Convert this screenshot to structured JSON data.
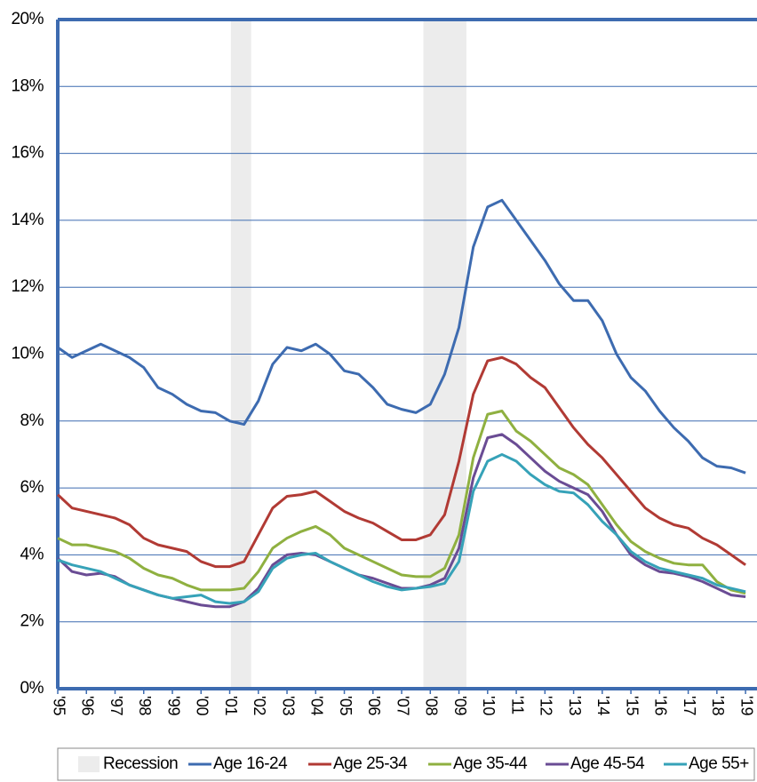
{
  "chart_data": {
    "type": "line",
    "x": [
      1995,
      1995.5,
      1996,
      1996.5,
      1997,
      1997.5,
      1998,
      1998.5,
      1999,
      1999.5,
      2000,
      2000.5,
      2001,
      2001.5,
      2002,
      2002.5,
      2003,
      2003.5,
      2004,
      2004.5,
      2005,
      2005.5,
      2006,
      2006.5,
      2007,
      2007.5,
      2008,
      2008.5,
      2009,
      2009.5,
      2010,
      2010.5,
      2011,
      2011.5,
      2012,
      2012.5,
      2013,
      2013.5,
      2014,
      2014.5,
      2015,
      2015.5,
      2016,
      2016.5,
      2017,
      2017.5,
      2018,
      2018.5,
      2019
    ],
    "series": [
      {
        "name": "Age 16-24",
        "color": "#3d6bb0",
        "values": [
          10.2,
          9.9,
          10.1,
          10.3,
          10.1,
          9.9,
          9.6,
          9.0,
          8.8,
          8.5,
          8.3,
          8.25,
          8.0,
          7.9,
          8.6,
          9.7,
          10.2,
          10.1,
          10.3,
          10.0,
          9.5,
          9.4,
          9.0,
          8.5,
          8.35,
          8.25,
          8.5,
          9.4,
          10.8,
          13.2,
          14.4,
          14.6,
          14.0,
          13.4,
          12.8,
          12.1,
          11.6,
          11.6,
          11.0,
          10.0,
          9.3,
          8.9,
          8.3,
          7.8,
          7.4,
          6.9,
          6.65,
          6.6,
          6.45
        ]
      },
      {
        "name": "Age 25-34",
        "color": "#b13a34",
        "values": [
          5.8,
          5.4,
          5.3,
          5.2,
          5.1,
          4.9,
          4.5,
          4.3,
          4.2,
          4.1,
          3.8,
          3.65,
          3.65,
          3.8,
          4.6,
          5.4,
          5.75,
          5.8,
          5.9,
          5.6,
          5.3,
          5.1,
          4.95,
          4.7,
          4.45,
          4.45,
          4.6,
          5.2,
          6.8,
          8.8,
          9.8,
          9.9,
          9.7,
          9.3,
          9.0,
          8.4,
          7.8,
          7.3,
          6.9,
          6.4,
          5.9,
          5.4,
          5.1,
          4.9,
          4.8,
          4.5,
          4.3,
          4.0,
          3.7
        ]
      },
      {
        "name": "Age 35-44",
        "color": "#8fb040",
        "values": [
          4.5,
          4.3,
          4.3,
          4.2,
          4.1,
          3.9,
          3.6,
          3.4,
          3.3,
          3.1,
          2.95,
          2.95,
          2.95,
          3.0,
          3.5,
          4.2,
          4.5,
          4.7,
          4.85,
          4.6,
          4.2,
          4.0,
          3.8,
          3.6,
          3.4,
          3.35,
          3.35,
          3.6,
          4.6,
          6.9,
          8.2,
          8.3,
          7.7,
          7.4,
          7.0,
          6.6,
          6.4,
          6.1,
          5.5,
          4.9,
          4.4,
          4.1,
          3.9,
          3.75,
          3.7,
          3.7,
          3.2,
          2.95,
          2.85
        ]
      },
      {
        "name": "Age 45-54",
        "color": "#6a4c94",
        "values": [
          3.9,
          3.5,
          3.4,
          3.45,
          3.35,
          3.1,
          2.95,
          2.8,
          2.7,
          2.6,
          2.5,
          2.45,
          2.45,
          2.6,
          3.0,
          3.7,
          4.0,
          4.05,
          4.0,
          3.8,
          3.6,
          3.4,
          3.3,
          3.15,
          3.0,
          3.0,
          3.1,
          3.3,
          4.2,
          6.3,
          7.5,
          7.6,
          7.3,
          6.9,
          6.5,
          6.2,
          6.0,
          5.8,
          5.3,
          4.6,
          4.0,
          3.7,
          3.5,
          3.45,
          3.35,
          3.2,
          3.0,
          2.8,
          2.75
        ]
      },
      {
        "name": "Age 55+",
        "color": "#36a2b8",
        "values": [
          3.85,
          3.7,
          3.6,
          3.5,
          3.3,
          3.1,
          2.95,
          2.8,
          2.7,
          2.75,
          2.8,
          2.6,
          2.55,
          2.6,
          2.9,
          3.6,
          3.9,
          4.0,
          4.05,
          3.8,
          3.6,
          3.4,
          3.2,
          3.05,
          2.95,
          3.0,
          3.05,
          3.15,
          3.8,
          5.9,
          6.8,
          7.0,
          6.8,
          6.4,
          6.1,
          5.9,
          5.85,
          5.5,
          5.0,
          4.6,
          4.1,
          3.8,
          3.6,
          3.5,
          3.4,
          3.3,
          3.1,
          3.0,
          2.9
        ]
      }
    ],
    "recession": {
      "name": "Recession",
      "color": "#ececec",
      "spans": [
        [
          2001.04,
          2001.75
        ],
        [
          2007.76,
          2009.26
        ]
      ]
    },
    "xlim": [
      1995,
      2019.4
    ],
    "xticks": [
      {
        "value": 1995,
        "label": "'95"
      },
      {
        "value": 1996,
        "label": "'96"
      },
      {
        "value": 1997,
        "label": "'97"
      },
      {
        "value": 1998,
        "label": "'98"
      },
      {
        "value": 1999,
        "label": "'99"
      },
      {
        "value": 2000,
        "label": "'00"
      },
      {
        "value": 2001,
        "label": "'01"
      },
      {
        "value": 2002,
        "label": "'02"
      },
      {
        "value": 2003,
        "label": "'03"
      },
      {
        "value": 2004,
        "label": "'04"
      },
      {
        "value": 2005,
        "label": "'05"
      },
      {
        "value": 2006,
        "label": "'06"
      },
      {
        "value": 2007,
        "label": "'07"
      },
      {
        "value": 2008,
        "label": "'08"
      },
      {
        "value": 2009,
        "label": "'09"
      },
      {
        "value": 2010,
        "label": "'10"
      },
      {
        "value": 2011,
        "label": "'11"
      },
      {
        "value": 2012,
        "label": "'12"
      },
      {
        "value": 2013,
        "label": "'13"
      },
      {
        "value": 2014,
        "label": "'14"
      },
      {
        "value": 2015,
        "label": "'15"
      },
      {
        "value": 2016,
        "label": "'16"
      },
      {
        "value": 2017,
        "label": "'17"
      },
      {
        "value": 2018,
        "label": "'18"
      },
      {
        "value": 2019,
        "label": "'19"
      }
    ],
    "ylim": [
      0,
      20
    ],
    "yticks": [
      {
        "value": 0,
        "label": "0%"
      },
      {
        "value": 2,
        "label": "2%"
      },
      {
        "value": 4,
        "label": "4%"
      },
      {
        "value": 6,
        "label": "6%"
      },
      {
        "value": 8,
        "label": "8%"
      },
      {
        "value": 10,
        "label": "10%"
      },
      {
        "value": 12,
        "label": "12%"
      },
      {
        "value": 14,
        "label": "14%"
      },
      {
        "value": 16,
        "label": "16%"
      },
      {
        "value": 18,
        "label": "18%"
      },
      {
        "value": 20,
        "label": "20%"
      }
    ],
    "grid": true,
    "legend": "bottom"
  }
}
